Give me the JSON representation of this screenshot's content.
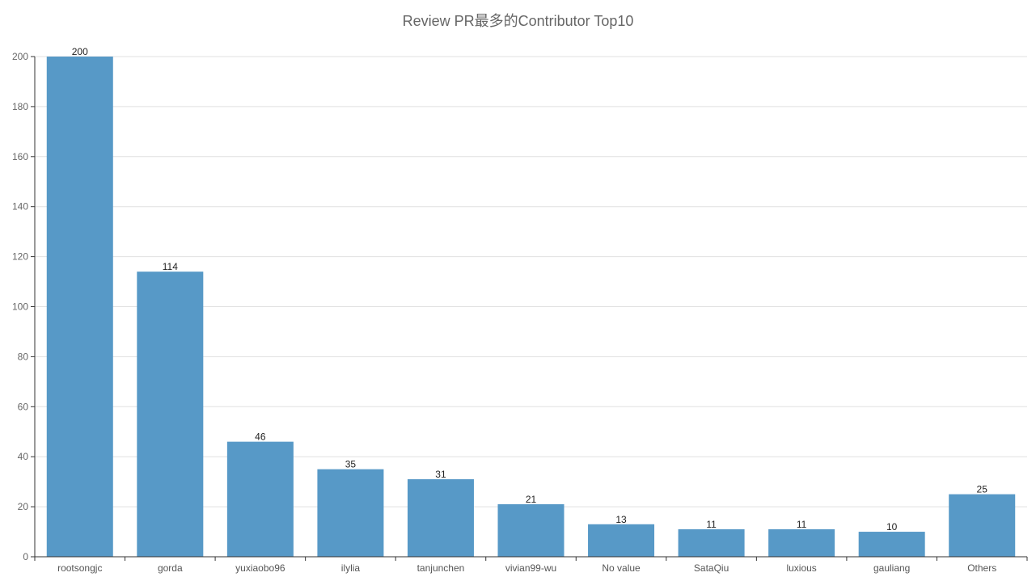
{
  "chart_data": {
    "type": "bar",
    "title": "Review PR最多的Contributor Top10",
    "categories": [
      "rootsongjc",
      "gorda",
      "yuxiaobo96",
      "ilylia",
      "tanjunchen",
      "vivian99-wu",
      "No value",
      "SataQiu",
      "luxious",
      "gauliang",
      "Others"
    ],
    "values": [
      200,
      114,
      46,
      35,
      31,
      21,
      13,
      11,
      11,
      10,
      25
    ],
    "xlabel": "",
    "ylabel": "",
    "ylim": [
      0,
      200
    ],
    "yticks": [
      0,
      20,
      40,
      60,
      80,
      100,
      120,
      140,
      160,
      180,
      200
    ],
    "grid": true,
    "colors": {
      "bar": "#5799c7",
      "grid": "#e0e0e0",
      "axis": "#333333"
    }
  }
}
